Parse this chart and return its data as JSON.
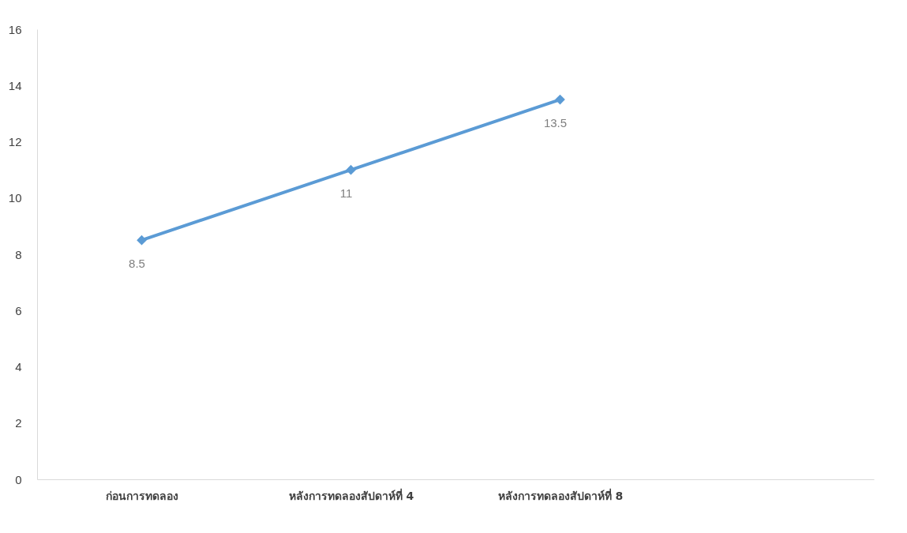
{
  "chart_data": {
    "type": "line",
    "categories": [
      "ก่อนการทดลอง",
      "หลังการทดลองสัปดาห์ที่ 4",
      "หลังการทดลองสัปดาห์ที่ 8",
      null
    ],
    "series": [
      {
        "color": "#5b9bd5",
        "values": [
          8.5,
          11,
          13.5,
          null
        ]
      }
    ],
    "ylim": [
      0,
      16
    ],
    "yticks": [
      0,
      2,
      4,
      6,
      8,
      10,
      12,
      14,
      16
    ],
    "grid": false,
    "marker": "diamond",
    "line_style": "solid",
    "data_labels": true
  }
}
